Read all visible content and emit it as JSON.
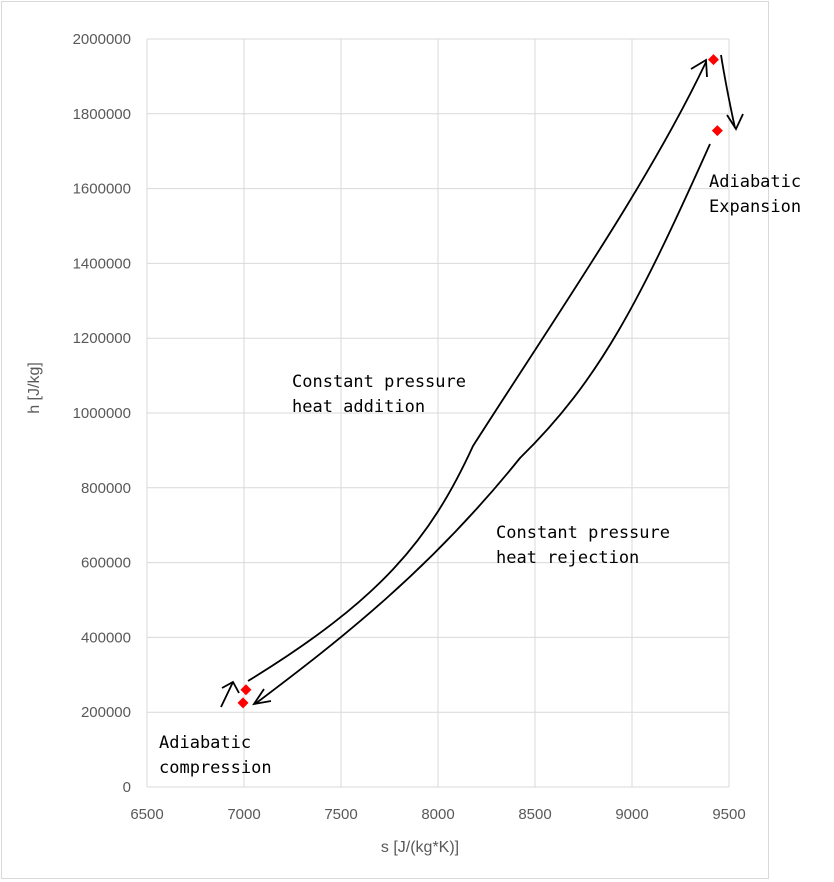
{
  "chart_data": {
    "type": "scatter",
    "xlabel": "s [J/(kg*K)]",
    "ylabel": "h [J/kg]",
    "xlim": [
      6500,
      9500
    ],
    "ylim": [
      0,
      2000000
    ],
    "xticks": [
      6500,
      7000,
      7500,
      8000,
      8500,
      9000,
      9500
    ],
    "yticks": [
      0,
      200000,
      400000,
      600000,
      800000,
      1000000,
      1200000,
      1400000,
      1600000,
      1800000,
      2000000
    ],
    "grid": true,
    "marker_color": "#ff0000",
    "marker_shape": "diamond",
    "points": [
      {
        "x": 6995,
        "y": 225000
      },
      {
        "x": 7010,
        "y": 260000
      },
      {
        "x": 9420,
        "y": 1945000
      },
      {
        "x": 9440,
        "y": 1755000
      }
    ],
    "annotations": [
      {
        "lines": [
          "Constant pressure",
          "heat addition"
        ]
      },
      {
        "lines": [
          "Constant pressure",
          "heat rejection"
        ]
      },
      {
        "lines": [
          "Adiabatic",
          "Expansion"
        ]
      },
      {
        "lines": [
          "Adiabatic",
          "compression"
        ]
      }
    ]
  }
}
